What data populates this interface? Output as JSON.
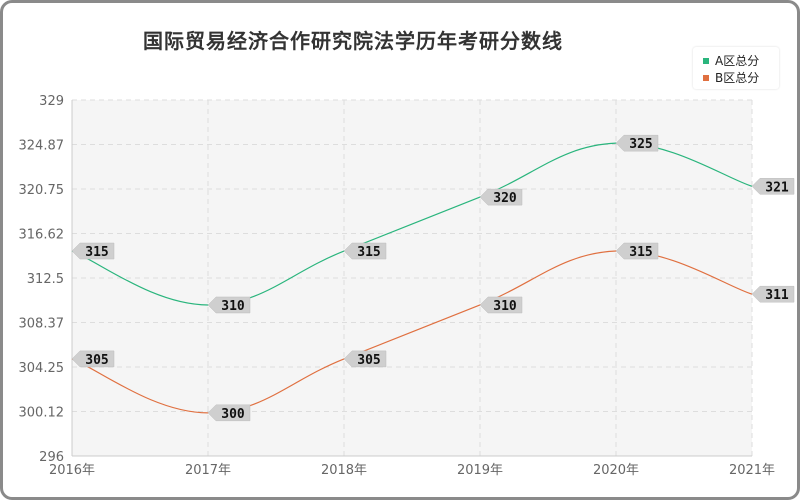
{
  "chart_data": {
    "type": "line",
    "title": "国际贸易经济合作研究院法学历年考研分数线",
    "xlabel": "",
    "ylabel": "",
    "categories": [
      "2016年",
      "2017年",
      "2018年",
      "2019年",
      "2020年",
      "2021年"
    ],
    "ylim": [
      296,
      329
    ],
    "yticks": [
      "296",
      "300.12",
      "304.25",
      "308.37",
      "312.5",
      "316.62",
      "320.75",
      "324.87",
      "329"
    ],
    "grid": true,
    "legend_position": "top-right",
    "series": [
      {
        "name": "A区总分",
        "color": "#2ab57d",
        "values": [
          315,
          310,
          315,
          320,
          325,
          321
        ]
      },
      {
        "name": "B区总分",
        "color": "#e07040",
        "values": [
          305,
          300,
          305,
          310,
          315,
          311
        ]
      }
    ]
  }
}
